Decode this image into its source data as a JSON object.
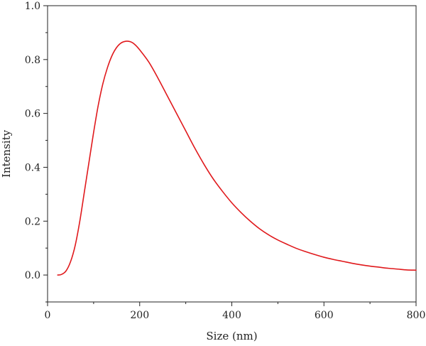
{
  "chart_data": {
    "type": "line",
    "title": "",
    "xlabel": "Size (nm)",
    "ylabel": "Intensity",
    "xlim": [
      0,
      800
    ],
    "ylim": [
      -0.1,
      1.0
    ],
    "xticks": [
      "0",
      "200",
      "400",
      "600",
      "800"
    ],
    "yticks": [
      "0.0",
      "0.2",
      "0.4",
      "0.6",
      "0.8",
      "1.0"
    ],
    "grid": false,
    "legend": "none",
    "series": [
      {
        "color": "#e0191c",
        "points": [
          [
            22,
            0.0
          ],
          [
            30,
            0.002
          ],
          [
            40,
            0.015
          ],
          [
            50,
            0.05
          ],
          [
            60,
            0.11
          ],
          [
            70,
            0.2
          ],
          [
            80,
            0.31
          ],
          [
            90,
            0.42
          ],
          [
            100,
            0.53
          ],
          [
            110,
            0.63
          ],
          [
            120,
            0.71
          ],
          [
            130,
            0.77
          ],
          [
            140,
            0.815
          ],
          [
            150,
            0.845
          ],
          [
            160,
            0.862
          ],
          [
            170,
            0.868
          ],
          [
            180,
            0.866
          ],
          [
            190,
            0.855
          ],
          [
            200,
            0.836
          ],
          [
            220,
            0.79
          ],
          [
            240,
            0.73
          ],
          [
            260,
            0.665
          ],
          [
            280,
            0.6
          ],
          [
            300,
            0.535
          ],
          [
            320,
            0.47
          ],
          [
            340,
            0.41
          ],
          [
            360,
            0.356
          ],
          [
            380,
            0.31
          ],
          [
            400,
            0.268
          ],
          [
            420,
            0.232
          ],
          [
            440,
            0.2
          ],
          [
            460,
            0.172
          ],
          [
            480,
            0.149
          ],
          [
            500,
            0.13
          ],
          [
            520,
            0.114
          ],
          [
            540,
            0.099
          ],
          [
            560,
            0.087
          ],
          [
            580,
            0.076
          ],
          [
            600,
            0.066
          ],
          [
            620,
            0.058
          ],
          [
            640,
            0.051
          ],
          [
            660,
            0.044
          ],
          [
            680,
            0.038
          ],
          [
            700,
            0.033
          ],
          [
            720,
            0.029
          ],
          [
            740,
            0.025
          ],
          [
            760,
            0.022
          ],
          [
            780,
            0.019
          ],
          [
            800,
            0.018
          ]
        ]
      }
    ]
  }
}
